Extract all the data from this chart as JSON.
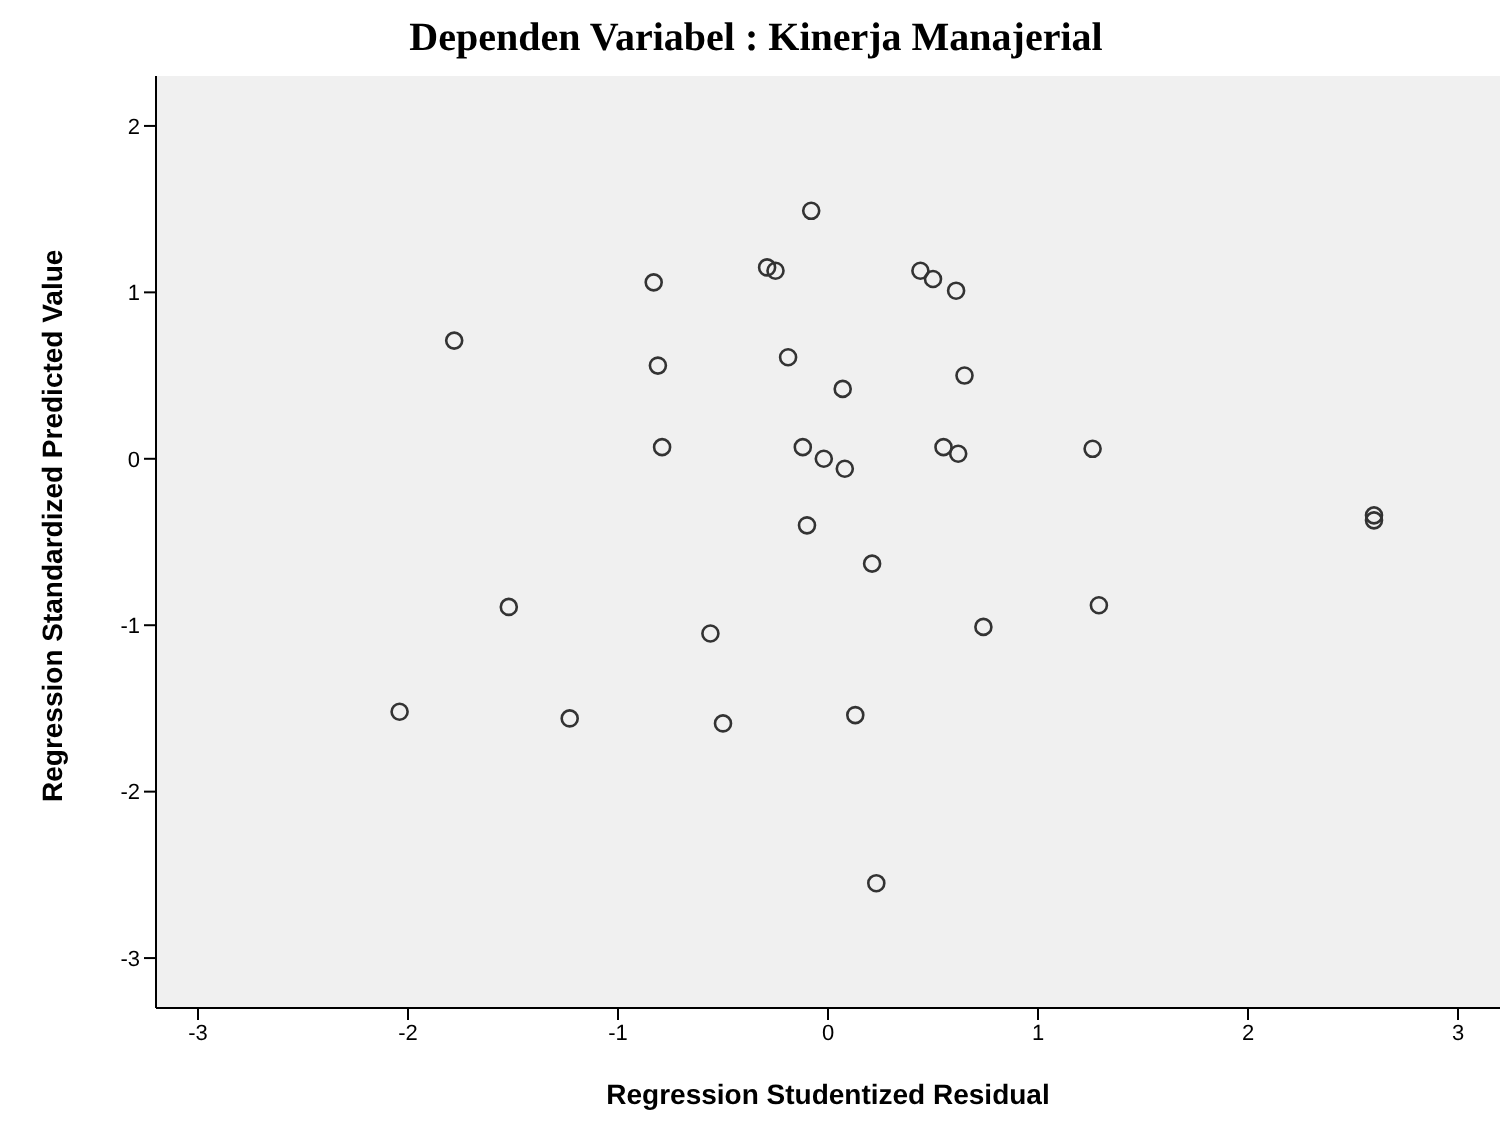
{
  "chart_data": {
    "type": "scatter",
    "title": "Dependen Variabel : Kinerja Manajerial",
    "xlabel": "Regression Studentized Residual",
    "ylabel": "Regression Standardized Predicted Value",
    "x": [
      -0.08,
      -0.29,
      -0.25,
      -0.83,
      0.44,
      0.5,
      0.61,
      -1.78,
      -0.81,
      -0.19,
      0.07,
      0.65,
      -0.79,
      -0.12,
      -0.02,
      0.08,
      0.55,
      0.62,
      -0.1,
      1.26,
      2.6,
      2.6,
      0.21,
      -1.52,
      -0.56,
      0.74,
      -2.04,
      -1.23,
      -0.5,
      0.13,
      0.23,
      1.29
    ],
    "series": [
      {
        "color": "#333333",
        "values": [
          1.49,
          1.15,
          1.13,
          1.06,
          1.13,
          1.08,
          1.01,
          0.71,
          0.56,
          0.61,
          0.42,
          0.5,
          0.07,
          0.07,
          0.0,
          -0.06,
          0.07,
          0.03,
          -0.4,
          0.06,
          -0.34,
          -0.37,
          -0.63,
          -0.89,
          -1.05,
          -1.01,
          -1.52,
          -1.56,
          -1.59,
          -1.54,
          -2.55,
          -0.88
        ]
      }
    ],
    "marker": "circle",
    "xlim": [
      -3.2,
      3.2
    ],
    "ylim": [
      -3.3,
      2.3
    ],
    "xticks": [
      -3,
      -2,
      -1,
      0,
      1,
      2,
      3
    ],
    "yticks": [
      -3,
      -2,
      -1,
      0,
      1,
      2
    ],
    "grid": false,
    "legend": false
  }
}
